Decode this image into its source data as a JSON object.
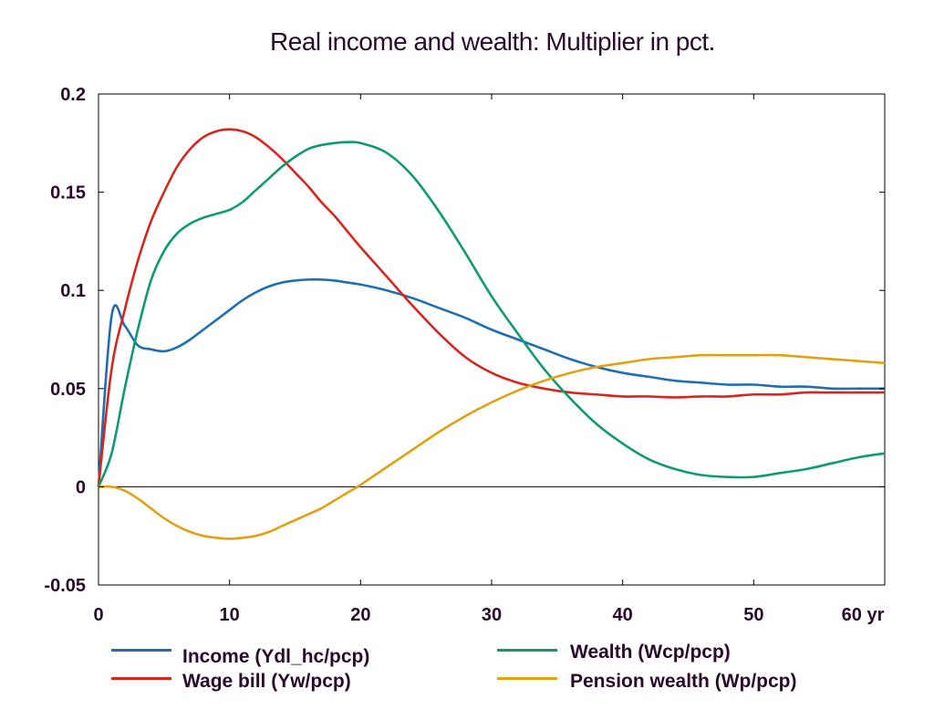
{
  "chart_data": {
    "type": "line",
    "title": "Real income and wealth: Multiplier in pct.",
    "xlabel": "",
    "ylabel": "",
    "xlim": [
      0,
      60
    ],
    "ylim": [
      -0.05,
      0.2
    ],
    "x_ticks": [
      "0",
      "10",
      "20",
      "30",
      "40",
      "50",
      "60 yr"
    ],
    "x_tick_values": [
      0,
      10,
      20,
      30,
      40,
      50,
      60
    ],
    "y_ticks": [
      "-0.05",
      "0",
      "0.05",
      "0.1",
      "0.15",
      "0.2"
    ],
    "y_tick_values": [
      -0.05,
      0,
      0.05,
      0.1,
      0.15,
      0.2
    ],
    "grid": false,
    "legend_position": "bottom",
    "x": [
      0,
      1,
      2,
      3,
      4,
      5,
      6,
      7,
      8,
      9,
      10,
      11,
      12,
      13,
      14,
      15,
      16,
      17,
      18,
      19,
      20,
      22,
      24,
      26,
      28,
      30,
      32,
      34,
      36,
      38,
      40,
      42,
      44,
      46,
      48,
      50,
      52,
      54,
      56,
      58,
      60
    ],
    "series": [
      {
        "name": "Income (Ydl_hc/pcp)",
        "color": "#1f6fb0",
        "values": [
          0,
          0.087,
          0.082,
          0.072,
          0.07,
          0.069,
          0.071,
          0.075,
          0.08,
          0.085,
          0.09,
          0.095,
          0.099,
          0.102,
          0.104,
          0.105,
          0.1055,
          0.1055,
          0.105,
          0.104,
          0.103,
          0.1,
          0.096,
          0.091,
          0.086,
          0.08,
          0.075,
          0.07,
          0.065,
          0.061,
          0.058,
          0.056,
          0.054,
          0.053,
          0.052,
          0.052,
          0.051,
          0.051,
          0.05,
          0.05,
          0.05
        ]
      },
      {
        "name": "Wage bill (Yw/pcp)",
        "color": "#d7261e",
        "values": [
          0,
          0.06,
          0.09,
          0.115,
          0.135,
          0.15,
          0.163,
          0.172,
          0.178,
          0.181,
          0.182,
          0.181,
          0.178,
          0.173,
          0.167,
          0.16,
          0.153,
          0.145,
          0.138,
          0.13,
          0.122,
          0.107,
          0.092,
          0.078,
          0.066,
          0.058,
          0.053,
          0.05,
          0.048,
          0.047,
          0.046,
          0.046,
          0.0455,
          0.046,
          0.046,
          0.047,
          0.047,
          0.048,
          0.048,
          0.048,
          0.048
        ]
      },
      {
        "name": "Wealth (Wcp/pcp)",
        "color": "#0e9a72",
        "values": [
          0,
          0.017,
          0.05,
          0.08,
          0.105,
          0.12,
          0.129,
          0.134,
          0.137,
          0.139,
          0.141,
          0.145,
          0.151,
          0.157,
          0.163,
          0.168,
          0.172,
          0.174,
          0.175,
          0.1755,
          0.175,
          0.17,
          0.158,
          0.14,
          0.119,
          0.097,
          0.078,
          0.06,
          0.045,
          0.032,
          0.022,
          0.014,
          0.009,
          0.006,
          0.005,
          0.005,
          0.007,
          0.009,
          0.012,
          0.015,
          0.017
        ]
      },
      {
        "name": "Pension wealth (Wp/pcp)",
        "color": "#e0a114",
        "values": [
          0,
          0,
          -0.002,
          -0.006,
          -0.011,
          -0.016,
          -0.02,
          -0.023,
          -0.025,
          -0.026,
          -0.0265,
          -0.026,
          -0.025,
          -0.023,
          -0.02,
          -0.017,
          -0.014,
          -0.011,
          -0.007,
          -0.003,
          0.001,
          0.01,
          0.019,
          0.028,
          0.036,
          0.043,
          0.049,
          0.054,
          0.058,
          0.061,
          0.063,
          0.065,
          0.066,
          0.067,
          0.067,
          0.067,
          0.067,
          0.066,
          0.065,
          0.064,
          0.063
        ]
      }
    ]
  }
}
